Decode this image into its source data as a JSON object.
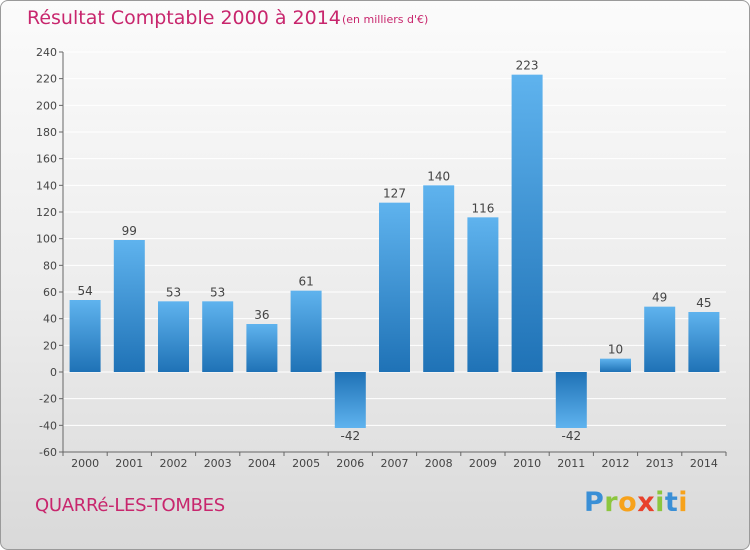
{
  "header": {
    "title": "Résultat Comptable 2000 à 2014",
    "unit": "(en milliers d'€)"
  },
  "footer": {
    "location": "QUARRé-LES-TOMBES",
    "logo_letters": [
      "P",
      "r",
      "o",
      "x",
      "i",
      "t",
      "i"
    ],
    "logo_colors": [
      "#3a8fd6",
      "#8cc63e",
      "#f7a21b",
      "#e8412c",
      "#8cc63e",
      "#3a8fd6",
      "#f7a21b"
    ]
  },
  "colors": {
    "bar_light": "#5aaeea",
    "bar_dark": "#2277bb",
    "title": "#c8266d",
    "grid": "#ffffff",
    "text": "#444444"
  },
  "chart_data": {
    "type": "bar",
    "categories": [
      "2000",
      "2001",
      "2002",
      "2003",
      "2004",
      "2005",
      "2006",
      "2007",
      "2008",
      "2009",
      "2010",
      "2011",
      "2012",
      "2013",
      "2014"
    ],
    "values": [
      54,
      99,
      53,
      53,
      36,
      61,
      -42,
      127,
      140,
      116,
      223,
      -42,
      10,
      49,
      45
    ],
    "title": "Résultat Comptable 2000 à 2014",
    "subtitle": "(en milliers d'€)",
    "ylim": [
      -60,
      240
    ],
    "yticks": [
      -60,
      -40,
      -20,
      0,
      20,
      40,
      60,
      80,
      100,
      120,
      140,
      160,
      180,
      200,
      220,
      240
    ],
    "grid": true,
    "legend": "none"
  }
}
